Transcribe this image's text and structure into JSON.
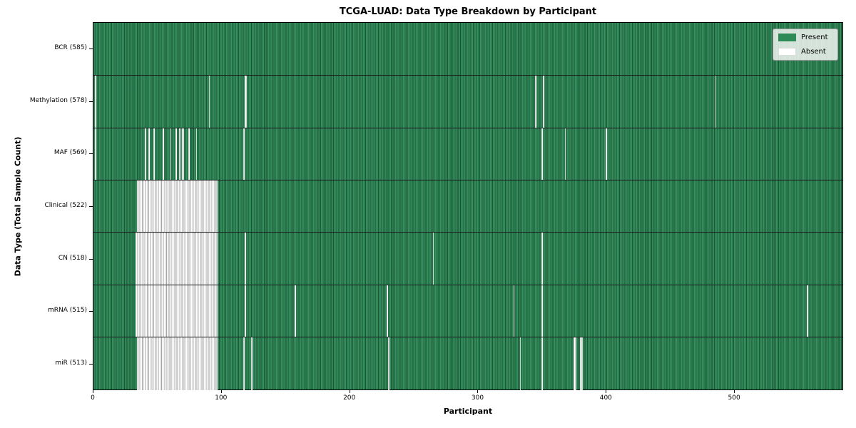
{
  "title": "TCGA-LUAD: Data Type Breakdown by Participant",
  "xlabel": "Participant",
  "ylabel": "Data Type (Total Sample Count)",
  "legend": {
    "present": "Present",
    "absent": "Absent"
  },
  "colors": {
    "present": "#2e8b57",
    "absent": "#ffffff",
    "absent_edge": "#8a8a8a",
    "row_separator": "#1a1a1a",
    "legend_border": "#999999"
  },
  "chart_data": {
    "type": "heatmap",
    "title": "TCGA-LUAD: Data Type Breakdown by Participant",
    "xlabel": "Participant",
    "ylabel": "Data Type (Total Sample Count)",
    "legend_entries": [
      "Present",
      "Absent"
    ],
    "legend_position": "upper right",
    "grid": false,
    "n_participants": 585,
    "x_range": [
      0,
      585
    ],
    "x_ticks": [
      0,
      100,
      200,
      300,
      400,
      500
    ],
    "rows": [
      {
        "name": "BCR",
        "label": "BCR (585)",
        "present_count": 585,
        "absent_count": 0,
        "absent_ranges": []
      },
      {
        "name": "Methylation",
        "label": "Methylation (578)",
        "present_count": 578,
        "absent_count": 7,
        "absent_ranges": [
          [
            1,
            1
          ],
          [
            90,
            90
          ],
          [
            118,
            119
          ],
          [
            345,
            345
          ],
          [
            351,
            351
          ],
          [
            485,
            485
          ]
        ]
      },
      {
        "name": "MAF",
        "label": "MAF (569)",
        "present_count": 569,
        "absent_count": 16,
        "absent_ranges": [
          [
            1,
            1
          ],
          [
            40,
            40
          ],
          [
            43,
            43
          ],
          [
            47,
            47
          ],
          [
            54,
            54
          ],
          [
            60,
            60
          ],
          [
            64,
            64
          ],
          [
            67,
            67
          ],
          [
            69,
            70
          ],
          [
            74,
            74
          ],
          [
            80,
            80
          ],
          [
            117,
            117
          ],
          [
            350,
            350
          ],
          [
            368,
            368
          ],
          [
            400,
            400
          ]
        ]
      },
      {
        "name": "Clinical",
        "label": "Clinical (522)",
        "present_count": 522,
        "absent_count": 63,
        "absent_ranges": [
          [
            34,
            96
          ]
        ]
      },
      {
        "name": "CN",
        "label": "CN (518)",
        "present_count": 518,
        "absent_count": 67,
        "absent_ranges": [
          [
            33,
            96
          ],
          [
            118,
            118
          ],
          [
            265,
            265
          ],
          [
            350,
            350
          ]
        ]
      },
      {
        "name": "mRNA",
        "label": "mRNA (515)",
        "present_count": 515,
        "absent_count": 70,
        "absent_ranges": [
          [
            33,
            96
          ],
          [
            118,
            118
          ],
          [
            157,
            157
          ],
          [
            229,
            229
          ],
          [
            328,
            328
          ],
          [
            350,
            350
          ],
          [
            557,
            557
          ]
        ]
      },
      {
        "name": "miR",
        "label": "miR (513)",
        "present_count": 513,
        "absent_count": 72,
        "absent_ranges": [
          [
            34,
            96
          ],
          [
            117,
            117
          ],
          [
            123,
            123
          ],
          [
            230,
            230
          ],
          [
            333,
            333
          ],
          [
            350,
            350
          ],
          [
            375,
            376
          ],
          [
            380,
            381
          ]
        ]
      }
    ]
  }
}
